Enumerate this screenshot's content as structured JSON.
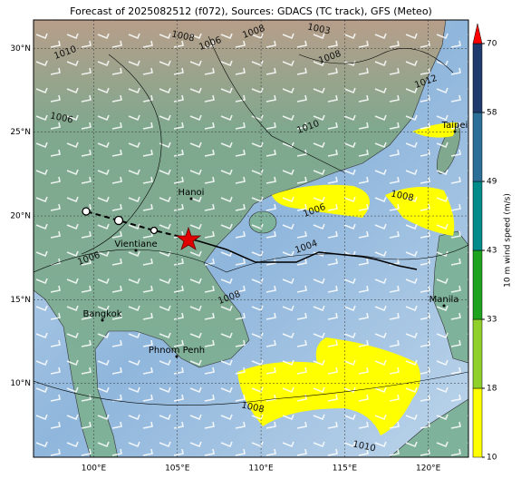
{
  "map": {
    "title": "Forecast of 2025082512 (f072), Sources: GDACS (TC track), GFS (Meteo)",
    "lon_lim": [
      96.4,
      122.4
    ],
    "lat_lim": [
      5.6,
      31.7
    ],
    "lon_ticks": [
      {
        "value": 100,
        "label": "100°E"
      },
      {
        "value": 105,
        "label": "105°E"
      },
      {
        "value": 110,
        "label": "110°E"
      },
      {
        "value": 115,
        "label": "115°E"
      },
      {
        "value": 120,
        "label": "120°E"
      }
    ],
    "lat_ticks": [
      {
        "value": 10,
        "label": "10°N"
      },
      {
        "value": 15,
        "label": "15°N"
      },
      {
        "value": 20,
        "label": "20°N"
      },
      {
        "value": 25,
        "label": "25°N"
      },
      {
        "value": 30,
        "label": "30°N"
      }
    ],
    "places": [
      "Taipei",
      "Hanoi",
      "Vientiane",
      "Bangkok",
      "Phnom Penh",
      "Manila"
    ],
    "isobar_labels": [
      1008,
      1006,
      1004,
      1008,
      1010,
      1012,
      1006,
      1006,
      1008,
      1008,
      1006,
      1010,
      1003,
      1008,
      1008,
      1010
    ],
    "colorbar": {
      "label": "10 m wind speed (m/s)",
      "ticks": [
        10,
        18,
        33,
        43,
        49,
        58,
        70
      ],
      "colors": [
        "#ffff00",
        "#8fd12a",
        "#1ea31e",
        "#008b8b",
        "#2b6f98",
        "#1f3a6d"
      ],
      "extend_color": "#ff0000"
    }
  }
}
